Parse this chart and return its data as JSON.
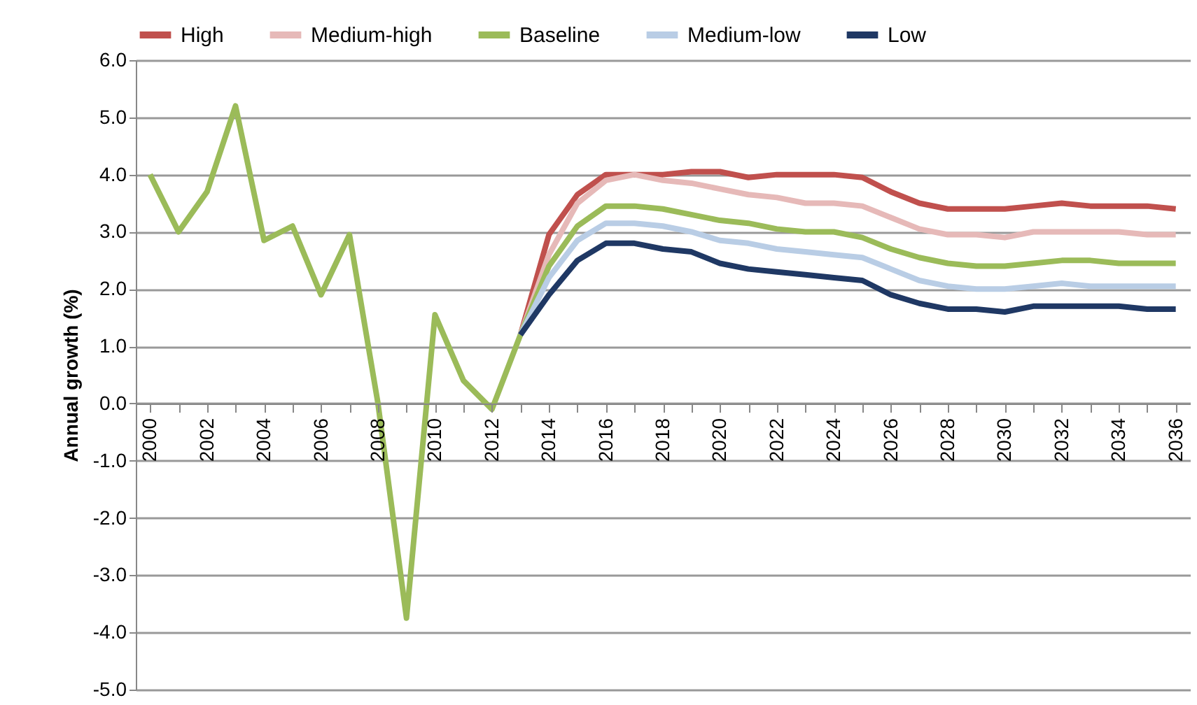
{
  "chart_data": {
    "type": "line",
    "ylabel": "Annual growth (%)",
    "xlim": [
      1999.5,
      2036.5
    ],
    "xticks": [
      2000,
      {
        "value": 2001,
        "label": null
      },
      2002,
      {
        "value": 2003,
        "label": null
      },
      2004,
      {
        "value": 2005,
        "label": null
      },
      2006,
      {
        "value": 2007,
        "label": null
      },
      2008,
      {
        "value": 2009,
        "label": null
      },
      2010,
      {
        "value": 2011,
        "label": null
      },
      2012,
      {
        "value": 2013,
        "label": null
      },
      2014,
      {
        "value": 2015,
        "label": null
      },
      2016,
      {
        "value": 2017,
        "label": null
      },
      2018,
      {
        "value": 2019,
        "label": null
      },
      2020,
      {
        "value": 2021,
        "label": null
      },
      2022,
      {
        "value": 2023,
        "label": null
      },
      2024,
      {
        "value": 2025,
        "label": null
      },
      2026,
      {
        "value": 2027,
        "label": null
      },
      2028,
      {
        "value": 2029,
        "label": null
      },
      2030,
      {
        "value": 2031,
        "label": null
      },
      2032,
      {
        "value": 2033,
        "label": null
      },
      2034,
      {
        "value": 2035,
        "label": null
      },
      2036
    ],
    "ylim": [
      -5,
      6
    ],
    "yticks": [
      {
        "value": -5,
        "label": "-5.0"
      },
      {
        "value": -4,
        "label": "-4.0"
      },
      {
        "value": -3,
        "label": "-3.0"
      },
      {
        "value": -2,
        "label": "-2.0"
      },
      {
        "value": -1,
        "label": "-1.0"
      },
      {
        "value": 0,
        "label": "0.0"
      },
      {
        "value": 1,
        "label": "1.0"
      },
      {
        "value": 2,
        "label": "2.0"
      },
      {
        "value": 3,
        "label": "3.0"
      },
      {
        "value": 4,
        "label": "4.0"
      },
      {
        "value": 5,
        "label": "5.0"
      },
      {
        "value": 6,
        "label": "6.0"
      }
    ],
    "grid": "y",
    "legend": "top",
    "marker": "none",
    "series": [
      {
        "name": "High",
        "color": "#c0504d",
        "x": [
          2013,
          2014,
          2015,
          2016,
          2017,
          2018,
          2019,
          2020,
          2021,
          2022,
          2023,
          2024,
          2025,
          2026,
          2027,
          2028,
          2029,
          2030,
          2031,
          2032,
          2033,
          2034,
          2035,
          2036
        ],
        "values": [
          1.2,
          2.95,
          3.65,
          4.0,
          4.0,
          4.0,
          4.05,
          4.05,
          3.95,
          4.0,
          4.0,
          4.0,
          3.95,
          3.7,
          3.5,
          3.4,
          3.4,
          3.4,
          3.45,
          3.5,
          3.45,
          3.45,
          3.45,
          3.4
        ]
      },
      {
        "name": "Medium-high",
        "color": "#e6b9b8",
        "x": [
          2013,
          2014,
          2015,
          2016,
          2017,
          2018,
          2019,
          2020,
          2021,
          2022,
          2023,
          2024,
          2025,
          2026,
          2027,
          2028,
          2029,
          2030,
          2031,
          2032,
          2033,
          2034,
          2035,
          2036
        ],
        "values": [
          1.2,
          2.6,
          3.5,
          3.9,
          4.0,
          3.9,
          3.85,
          3.75,
          3.65,
          3.6,
          3.5,
          3.5,
          3.45,
          3.25,
          3.05,
          2.95,
          2.95,
          2.9,
          3.0,
          3.0,
          3.0,
          3.0,
          2.95,
          2.95
        ]
      },
      {
        "name": "Baseline",
        "color": "#9bbb59",
        "x": [
          2000,
          2001,
          2002,
          2003,
          2004,
          2005,
          2006,
          2007,
          2008,
          2009,
          2010,
          2011,
          2012,
          2013,
          2014,
          2015,
          2016,
          2017,
          2018,
          2019,
          2020,
          2021,
          2022,
          2023,
          2024,
          2025,
          2026,
          2027,
          2028,
          2029,
          2030,
          2031,
          2032,
          2033,
          2034,
          2035,
          2036
        ],
        "values": [
          4.0,
          3.0,
          3.7,
          5.2,
          2.85,
          3.1,
          1.9,
          2.95,
          0.0,
          -3.75,
          1.55,
          0.4,
          -0.1,
          1.2,
          2.4,
          3.1,
          3.45,
          3.45,
          3.4,
          3.3,
          3.2,
          3.15,
          3.05,
          3.0,
          3.0,
          2.9,
          2.7,
          2.55,
          2.45,
          2.4,
          2.4,
          2.45,
          2.5,
          2.5,
          2.45,
          2.45,
          2.45
        ]
      },
      {
        "name": "Medium-low",
        "color": "#b9cde5",
        "x": [
          2013,
          2014,
          2015,
          2016,
          2017,
          2018,
          2019,
          2020,
          2021,
          2022,
          2023,
          2024,
          2025,
          2026,
          2027,
          2028,
          2029,
          2030,
          2031,
          2032,
          2033,
          2034,
          2035,
          2036
        ],
        "values": [
          1.2,
          2.2,
          2.85,
          3.15,
          3.15,
          3.1,
          3.0,
          2.85,
          2.8,
          2.7,
          2.65,
          2.6,
          2.55,
          2.35,
          2.15,
          2.05,
          2.0,
          2.0,
          2.05,
          2.1,
          2.05,
          2.05,
          2.05,
          2.05
        ]
      },
      {
        "name": "Low",
        "color": "#1f3864",
        "x": [
          2013,
          2014,
          2015,
          2016,
          2017,
          2018,
          2019,
          2020,
          2021,
          2022,
          2023,
          2024,
          2025,
          2026,
          2027,
          2028,
          2029,
          2030,
          2031,
          2032,
          2033,
          2034,
          2035,
          2036
        ],
        "values": [
          1.2,
          1.9,
          2.5,
          2.8,
          2.8,
          2.7,
          2.65,
          2.45,
          2.35,
          2.3,
          2.25,
          2.2,
          2.15,
          1.9,
          1.75,
          1.65,
          1.65,
          1.6,
          1.7,
          1.7,
          1.7,
          1.7,
          1.65,
          1.65
        ]
      }
    ]
  }
}
